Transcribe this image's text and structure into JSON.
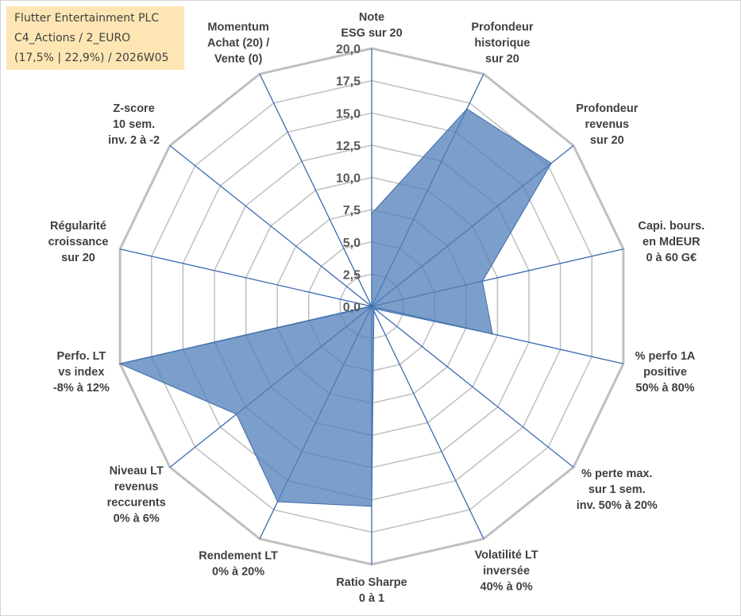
{
  "info_box": {
    "line1": "Flutter Entertainment PLC",
    "line2": "C4_Actions / 2_EURO",
    "line3": "(17,5% | 22,9%) / 2026W05"
  },
  "colors": {
    "series_fill": "#4f7fb8",
    "series_stroke": "#3b6aa8",
    "grid": "#bfbfbf",
    "spoke": "#3d6bb3",
    "text": "#404040",
    "info_bg": "#fde6b3"
  },
  "chart_data": {
    "type": "radar",
    "title": "",
    "range": [
      0,
      20
    ],
    "tick_step": 2.5,
    "tick_labels": [
      "0,0",
      "2,5",
      "5,0",
      "7,5",
      "10,0",
      "12,5",
      "15,0",
      "17,5",
      "20,0"
    ],
    "categories": [
      {
        "lines": [
          "Note",
          "ESG sur 20"
        ]
      },
      {
        "lines": [
          "Profondeur",
          "historique",
          "sur 20"
        ]
      },
      {
        "lines": [
          "Profondeur",
          "revenus",
          "sur 20"
        ]
      },
      {
        "lines": [
          "Capi. bours.",
          "en MdEUR",
          "0 à 60 G€"
        ]
      },
      {
        "lines": [
          "% perfo 1A",
          "positive",
          "50% à 80%"
        ]
      },
      {
        "lines": [
          "% perte max.",
          "sur 1 sem.",
          "inv. 50% à 20%"
        ]
      },
      {
        "lines": [
          "Volatilité LT",
          "inversée",
          "40% à 0%"
        ]
      },
      {
        "lines": [
          "Ratio Sharpe",
          "0 à 1"
        ]
      },
      {
        "lines": [
          "Rendement LT",
          "0% à 20%"
        ]
      },
      {
        "lines": [
          "Niveau LT",
          "revenus",
          "reccurents",
          "0% à 6%"
        ]
      },
      {
        "lines": [
          "Perfo. LT",
          "vs index",
          "-8% à 12%"
        ]
      },
      {
        "lines": [
          "Régularité",
          "croissance",
          "sur 20"
        ]
      },
      {
        "lines": [
          "Z-score",
          "10 sem.",
          "inv. 2 à -2"
        ]
      },
      {
        "lines": [
          "Momentum",
          "Achat (20) /",
          "Vente (0)"
        ]
      }
    ],
    "series": [
      {
        "name": "Flutter Entertainment PLC",
        "values": [
          7.2,
          17.0,
          17.8,
          8.8,
          9.6,
          0.3,
          0.4,
          15.5,
          16.8,
          13.4,
          20.0,
          0.1,
          0.0,
          0.0
        ]
      }
    ]
  }
}
